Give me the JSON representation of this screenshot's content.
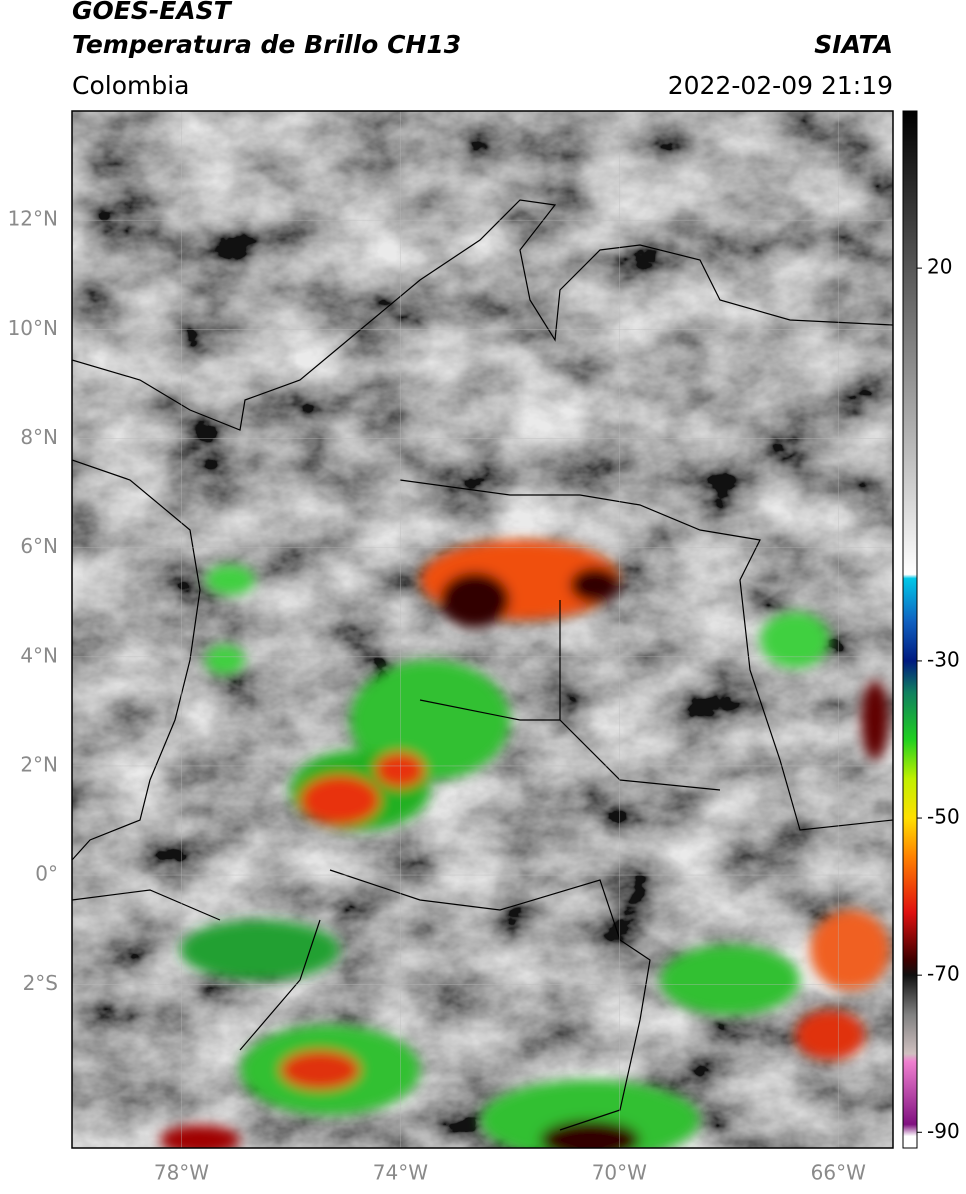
{
  "header": {
    "title": "GOES-EAST",
    "subtitle": "Temperatura de Brillo CH13",
    "source": "SIATA",
    "region": "Colombia",
    "timestamp": "2022-02-09 21:19"
  },
  "map": {
    "lon_range": [
      -80,
      -65
    ],
    "lat_range": [
      -5,
      14
    ],
    "lon_ticks": [
      {
        "value": -78,
        "label": "78°W"
      },
      {
        "value": -74,
        "label": "74°W"
      },
      {
        "value": -70,
        "label": "70°W"
      },
      {
        "value": -66,
        "label": "66°W"
      }
    ],
    "lat_ticks": [
      {
        "value": 12,
        "label": "12°N"
      },
      {
        "value": 10,
        "label": "10°N"
      },
      {
        "value": 8,
        "label": "8°N"
      },
      {
        "value": 6,
        "label": "6°N"
      },
      {
        "value": 4,
        "label": "4°N"
      },
      {
        "value": 2,
        "label": "2°N"
      },
      {
        "value": 0,
        "label": "0°"
      },
      {
        "value": -2,
        "label": "2°S"
      }
    ],
    "grid": true
  },
  "colorbar": {
    "range": [
      -92,
      40
    ],
    "ticks": [
      20,
      -30,
      -50,
      -70,
      -90
    ],
    "colormap": [
      {
        "value": 40,
        "color": "#000000"
      },
      {
        "value": -19,
        "color": "#ffffff"
      },
      {
        "value": -19.5,
        "color": "#00c8e8"
      },
      {
        "value": -25,
        "color": "#1060c0"
      },
      {
        "value": -30,
        "color": "#001a80"
      },
      {
        "value": -34,
        "color": "#108060"
      },
      {
        "value": -40,
        "color": "#20d020"
      },
      {
        "value": -45,
        "color": "#c0f000"
      },
      {
        "value": -50,
        "color": "#ffe000"
      },
      {
        "value": -55,
        "color": "#ff8000"
      },
      {
        "value": -62,
        "color": "#e01010"
      },
      {
        "value": -68,
        "color": "#400000"
      },
      {
        "value": -70,
        "color": "#101010"
      },
      {
        "value": -75,
        "color": "#808080"
      },
      {
        "value": -80,
        "color": "#d0c0c0"
      },
      {
        "value": -81,
        "color": "#f080d0"
      },
      {
        "value": -89,
        "color": "#801080"
      },
      {
        "value": -90.5,
        "color": "#ffffff"
      }
    ]
  }
}
